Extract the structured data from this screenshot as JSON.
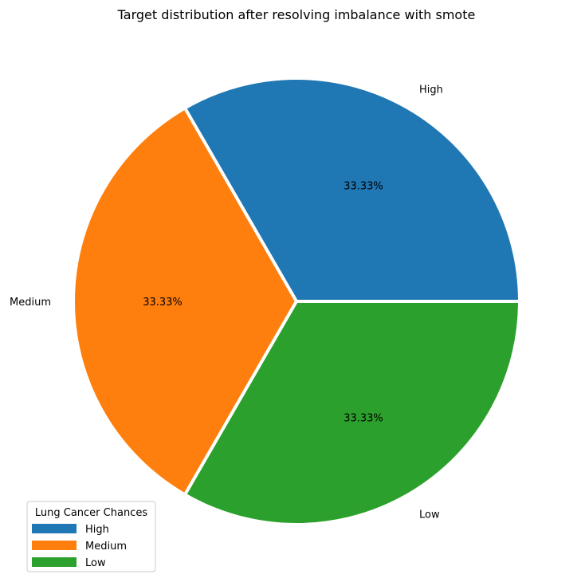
{
  "chart_data": {
    "type": "pie",
    "title": "Target distribution after resolving imbalance with smote",
    "categories": [
      "High",
      "Medium",
      "Low"
    ],
    "values": [
      33.33,
      33.33,
      33.33
    ],
    "percent_labels": [
      "33.33%",
      "33.33%",
      "33.33%"
    ],
    "colors": [
      "#1f77b4",
      "#ff7f0e",
      "#2ca02c"
    ],
    "start_angle_deg": 0,
    "direction": "counterclockwise",
    "legend": {
      "title": "Lung Cancer Chances",
      "placement": "lower-left",
      "entries": [
        "High",
        "Medium",
        "Low"
      ]
    }
  }
}
